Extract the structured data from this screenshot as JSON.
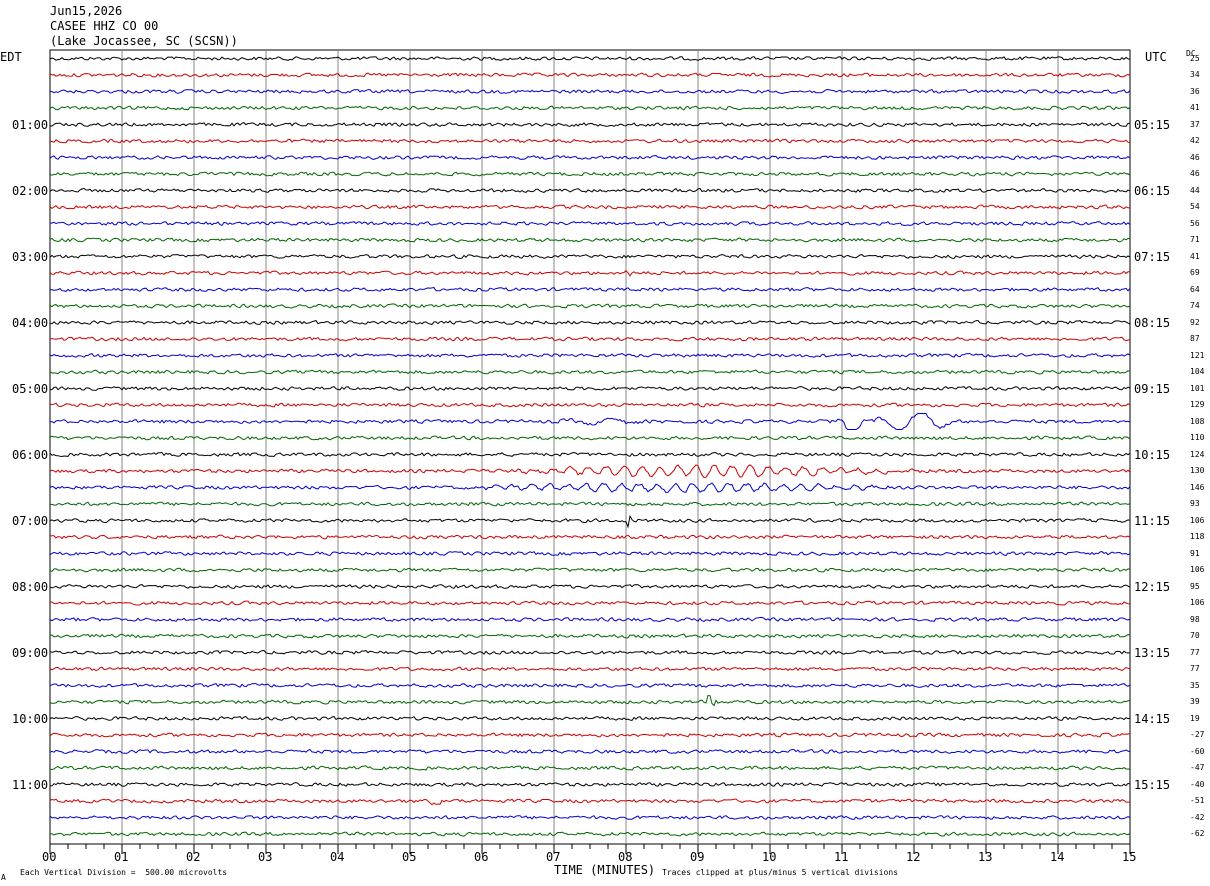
{
  "header": {
    "date": "Jun15,2026",
    "station": "CASEE HHZ CO 00",
    "location": "(Lake Jocassee, SC (SCSN))"
  },
  "left_tz": "EDT",
  "right_tz": "UTC",
  "dc_label": "DC",
  "footer": {
    "scale_note": "Each Vertical Division =  500.00 microvolts",
    "x_title": "TIME (MINUTES)",
    "clip_note": "Traces clipped at plus/minus 5 vertical divisions",
    "corner_mark": "A"
  },
  "colors": {
    "trace_cycle": [
      "#000000",
      "#cc0000",
      "#0000cc",
      "#006600"
    ],
    "grid": "#888888"
  },
  "chart_data": {
    "type": "line",
    "xlabel": "TIME (MINUTES)",
    "x_range": [
      0,
      15
    ],
    "x_ticks": [
      "00",
      "01",
      "02",
      "03",
      "04",
      "05",
      "06",
      "07",
      "08",
      "09",
      "10",
      "11",
      "12",
      "13",
      "14",
      "15"
    ],
    "left_hour_labels": [
      "01:00",
      "02:00",
      "03:00",
      "04:00",
      "05:00",
      "06:00",
      "07:00",
      "08:00",
      "09:00",
      "10:00",
      "11:00"
    ],
    "right_hour_labels": [
      "05:15",
      "06:15",
      "07:15",
      "08:15",
      "09:15",
      "10:15",
      "11:15",
      "12:15",
      "13:15",
      "14:15",
      "15:15"
    ],
    "trace_count": 48,
    "dc_offsets": [
      25,
      34,
      36,
      41,
      37,
      42,
      46,
      46,
      44,
      54,
      56,
      71,
      41,
      69,
      64,
      74,
      92,
      87,
      121,
      104,
      101,
      129,
      108,
      110,
      124,
      130,
      146,
      93,
      106,
      118,
      91,
      106,
      95,
      106,
      98,
      70,
      77,
      77,
      35,
      39,
      19,
      -27,
      -60,
      -47,
      -40,
      -51,
      -42,
      -62
    ],
    "events": [
      {
        "trace": 13,
        "minute": 8.0,
        "amplitude": 6,
        "duration": 0.05
      },
      {
        "trace": 14,
        "minute": 8.8,
        "amplitude": 3,
        "duration": 0.3
      },
      {
        "trace": 22,
        "minute": 7.0,
        "amplitude": 3,
        "duration": 1.3
      },
      {
        "trace": 22,
        "minute": 10.9,
        "amplitude": 14,
        "duration": 0.4
      },
      {
        "trace": 22,
        "minute": 11.4,
        "amplitude": 10,
        "duration": 1.2
      },
      {
        "trace": 25,
        "minute": 6.0,
        "amplitude": 5,
        "duration": 6.2
      },
      {
        "trace": 26,
        "minute": 5.5,
        "amplitude": 4,
        "duration": 6.5
      },
      {
        "trace": 28,
        "minute": 8.0,
        "amplitude": 7,
        "duration": 0.05
      },
      {
        "trace": 39,
        "minute": 9.15,
        "amplitude": 8,
        "duration": 0.1
      },
      {
        "trace": 45,
        "minute": 5.15,
        "amplitude": 5,
        "duration": 0.3
      }
    ]
  }
}
